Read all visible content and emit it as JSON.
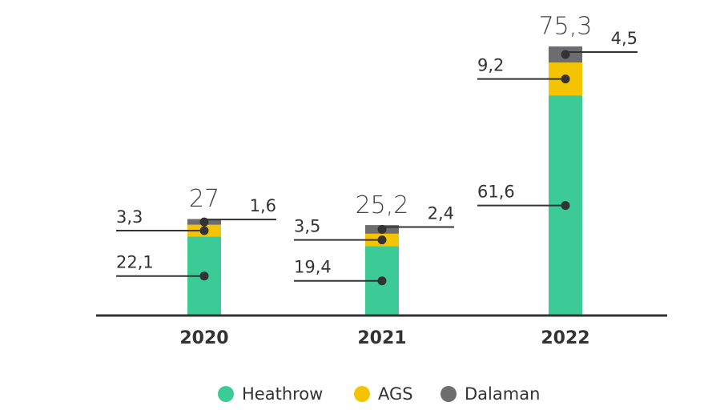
{
  "chart_data": {
    "type": "stacked-bar",
    "categories": [
      "2020",
      "2021",
      "2022"
    ],
    "series": [
      {
        "name": "Heathrow",
        "color": "#3ccb96",
        "values": [
          22.1,
          19.4,
          61.6
        ],
        "value_labels": [
          "22,1",
          "19,4",
          "61,6"
        ]
      },
      {
        "name": "AGS",
        "color": "#f5c400",
        "values": [
          3.3,
          3.5,
          9.2
        ],
        "value_labels": [
          "3,3",
          "3,5",
          "9,2"
        ]
      },
      {
        "name": "Dalaman",
        "color": "#6d6d6f",
        "values": [
          1.6,
          2.4,
          4.5
        ],
        "value_labels": [
          "1,6",
          "2,4",
          "4,5"
        ]
      }
    ],
    "totals": [
      27,
      25.2,
      75.3
    ],
    "total_labels": [
      "27",
      "25,2",
      "75,3"
    ]
  }
}
